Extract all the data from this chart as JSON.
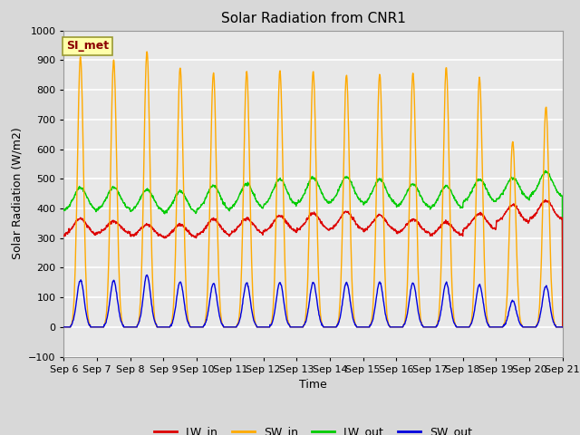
{
  "title": "Solar Radiation from CNR1",
  "xlabel": "Time",
  "ylabel": "Solar Radiation (W/m2)",
  "ylim": [
    -100,
    1000
  ],
  "x_tick_labels": [
    "Sep 6",
    "Sep 7",
    "Sep 8",
    "Sep 9",
    "Sep 10",
    "Sep 11",
    "Sep 12",
    "Sep 13",
    "Sep 14",
    "Sep 15",
    "Sep 16",
    "Sep 17",
    "Sep 18",
    "Sep 19",
    "Sep 20",
    "Sep 21"
  ],
  "legend_label": "SI_met",
  "series_colors": {
    "LW_in": "#dd0000",
    "SW_in": "#ffaa00",
    "LW_out": "#00cc00",
    "SW_out": "#0000dd"
  },
  "outer_bg": "#d8d8d8",
  "plot_bg": "#e8e8e8",
  "grid_color": "#ffffff",
  "yticks": [
    -100,
    0,
    100,
    200,
    300,
    400,
    500,
    600,
    700,
    800,
    900,
    1000
  ],
  "sw_in_peak_vals": [
    910,
    900,
    930,
    875,
    858,
    862,
    862,
    862,
    850,
    852,
    855,
    875,
    840,
    625,
    742
  ],
  "sw_out_peak_vals": [
    158,
    157,
    175,
    153,
    147,
    149,
    150,
    150,
    150,
    151,
    149,
    149,
    142,
    88,
    138
  ],
  "lw_in_base": [
    310,
    315,
    305,
    300,
    308,
    315,
    320,
    325,
    328,
    323,
    315,
    308,
    328,
    352,
    362,
    352
  ],
  "lw_in_bump": [
    55,
    42,
    40,
    45,
    55,
    50,
    55,
    58,
    60,
    55,
    48,
    45,
    55,
    60,
    65,
    55
  ],
  "lw_out_base": [
    390,
    395,
    388,
    382,
    392,
    398,
    408,
    413,
    418,
    412,
    402,
    398,
    418,
    428,
    438,
    428
  ],
  "lw_out_bump": [
    80,
    75,
    75,
    75,
    85,
    85,
    90,
    90,
    88,
    85,
    80,
    78,
    80,
    75,
    85,
    78
  ]
}
